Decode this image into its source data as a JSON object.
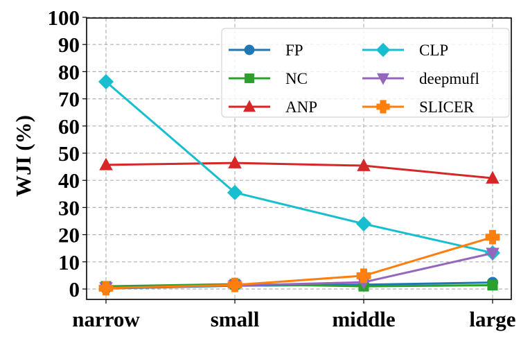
{
  "chart_data": {
    "type": "line",
    "title": "",
    "xlabel": "",
    "ylabel": "WJI (%)",
    "categories": [
      "narrow",
      "small",
      "middle",
      "large"
    ],
    "ylim": [
      0,
      100
    ],
    "yticks": [
      0,
      10,
      20,
      30,
      40,
      50,
      60,
      70,
      80,
      90,
      100
    ],
    "ytick_labels": [
      "0",
      "10",
      "20",
      "30",
      "40",
      "50",
      "60",
      "70",
      "80",
      "90",
      "100"
    ],
    "grid": true,
    "legend": {
      "placement": "top-right",
      "columns": 2
    },
    "series": [
      {
        "name": "FP",
        "color": "#1f77b4",
        "marker": "circle",
        "values": [
          0.2,
          1.2,
          1.6,
          2.4
        ]
      },
      {
        "name": "NC",
        "color": "#2ca02c",
        "marker": "square",
        "values": [
          1.0,
          1.8,
          1.0,
          1.4
        ]
      },
      {
        "name": "ANP",
        "color": "#d62728",
        "marker": "triangle-up",
        "values": [
          45.7,
          46.4,
          45.4,
          40.8
        ]
      },
      {
        "name": "CLP",
        "color": "#17becf",
        "marker": "diamond",
        "values": [
          76.3,
          35.5,
          24.0,
          13.3
        ]
      },
      {
        "name": "deepmufl",
        "color": "#9467bd",
        "marker": "triangle-down",
        "values": [
          0.5,
          1.3,
          2.5,
          13.2
        ]
      },
      {
        "name": "SLICER",
        "color": "#ff7f0e",
        "marker": "plus",
        "values": [
          0.3,
          1.5,
          4.9,
          19.1
        ]
      }
    ]
  }
}
